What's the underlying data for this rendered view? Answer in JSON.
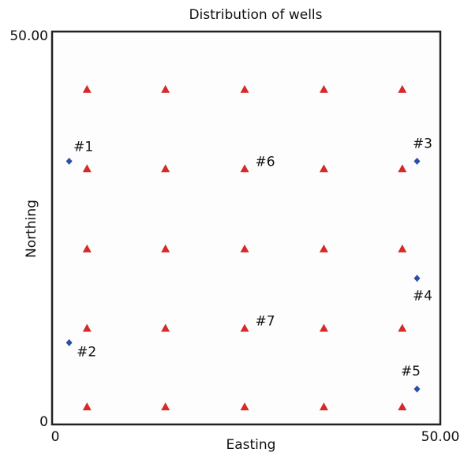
{
  "chart_data": {
    "type": "scatter",
    "title": "Distribution of wells",
    "x_label": "Easting",
    "y_label": "Northing",
    "xlim": [
      0,
      50
    ],
    "ylim": [
      0,
      50
    ],
    "xticks": [
      0,
      {
        "value": 50,
        "label": "50.00"
      }
    ],
    "yticks": [
      0,
      {
        "value": 50,
        "label": "50.00"
      }
    ],
    "series": [
      {
        "marker": "triangle",
        "color": "#d42a2a",
        "x": [
          4.5,
          14.6,
          24.8,
          35,
          45.1,
          4.5,
          14.6,
          24.8,
          35,
          45.1,
          4.5,
          14.6,
          24.8,
          35,
          45.1,
          4.5,
          14.6,
          24.8,
          35,
          45.1,
          4.5,
          14.6,
          24.8,
          35,
          45.1
        ],
        "values": [
          42.6,
          42.6,
          42.6,
          42.6,
          42.6,
          32.5,
          32.5,
          32.5,
          32.5,
          32.5,
          22.3,
          22.3,
          22.3,
          22.3,
          22.3,
          12.2,
          12.2,
          12.2,
          12.2,
          12.2,
          2.2,
          2.2,
          2.2,
          2.2,
          2.2
        ]
      },
      {
        "marker": "diamond",
        "color": "#2a4fa6",
        "x": [
          2.2,
          2.2,
          47,
          47,
          47
        ],
        "values": [
          33.5,
          10.4,
          33.5,
          18.6,
          4.5
        ],
        "labels": [
          "#1",
          "#2",
          "#3",
          "#4",
          "#5"
        ]
      }
    ],
    "annotations": [
      {
        "text": "#6",
        "x": 24.8,
        "y": 32.5
      },
      {
        "text": "#7",
        "x": 24.8,
        "y": 12.2
      }
    ]
  }
}
